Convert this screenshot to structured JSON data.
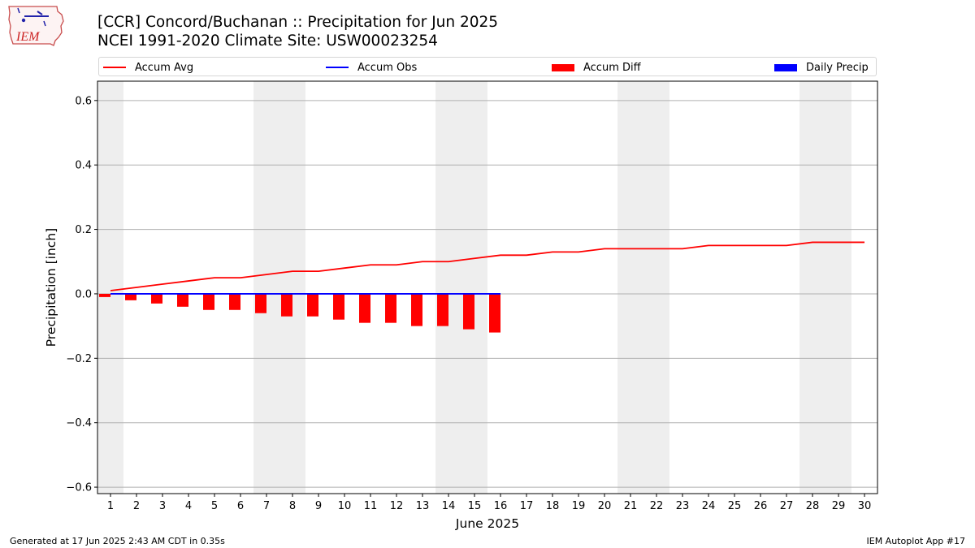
{
  "header": {
    "title_line1": "[CCR] Concord/Buchanan :: Precipitation for Jun 2025",
    "title_line2": "NCEI 1991-2020 Climate Site: USW00023254",
    "logo_text": "IEM"
  },
  "footer": {
    "left": "Generated at 17 Jun 2025 2:43 AM CDT in 0.35s",
    "right": "IEM Autoplot App #17"
  },
  "colors": {
    "accum_avg": "#ff0000",
    "accum_obs": "#0000ff",
    "accum_diff": "#ff0000",
    "daily_precip": "#0000ff",
    "weekend_shade": "#eeeeee",
    "grid": "#b0b0b0"
  },
  "chart_data": {
    "type": "bar",
    "xlabel": "June 2025",
    "ylabel": "Precipitation [inch]",
    "ylim": [
      -0.62,
      0.66
    ],
    "yticks": [
      0.6,
      0.4,
      0.2,
      0.0,
      -0.2,
      -0.4,
      -0.6
    ],
    "ytick_labels": [
      "0.6",
      "0.4",
      "0.2",
      "0.0",
      "−0.2",
      "−0.4",
      "−0.6"
    ],
    "grid": "horizontal",
    "legend_placement": "top",
    "days": [
      1,
      2,
      3,
      4,
      5,
      6,
      7,
      8,
      9,
      10,
      11,
      12,
      13,
      14,
      15,
      16,
      17,
      18,
      19,
      20,
      21,
      22,
      23,
      24,
      25,
      26,
      27,
      28,
      29,
      30
    ],
    "weekend_days": [
      1,
      7,
      8,
      14,
      15,
      21,
      22,
      28,
      29
    ],
    "series": [
      {
        "name": "Accum Avg",
        "kind": "line",
        "values": [
          0.01,
          0.02,
          0.03,
          0.04,
          0.05,
          0.05,
          0.06,
          0.07,
          0.07,
          0.08,
          0.09,
          0.09,
          0.1,
          0.1,
          0.11,
          0.12,
          0.12,
          0.13,
          0.13,
          0.14,
          0.14,
          0.14,
          0.14,
          0.15,
          0.15,
          0.15,
          0.15,
          0.16,
          0.16,
          0.16
        ]
      },
      {
        "name": "Accum Obs",
        "kind": "line",
        "values": [
          0,
          0,
          0,
          0,
          0,
          0,
          0,
          0,
          0,
          0,
          0,
          0,
          0,
          0,
          0,
          0
        ]
      },
      {
        "name": "Accum Diff",
        "kind": "bar",
        "values": [
          -0.01,
          -0.02,
          -0.03,
          -0.04,
          -0.05,
          -0.05,
          -0.06,
          -0.07,
          -0.07,
          -0.08,
          -0.09,
          -0.09,
          -0.1,
          -0.1,
          -0.11,
          -0.12
        ]
      },
      {
        "name": "Daily Precip",
        "kind": "bar",
        "values": [
          0,
          0,
          0,
          0,
          0,
          0,
          0,
          0,
          0,
          0,
          0,
          0,
          0,
          0,
          0,
          0
        ]
      }
    ]
  }
}
